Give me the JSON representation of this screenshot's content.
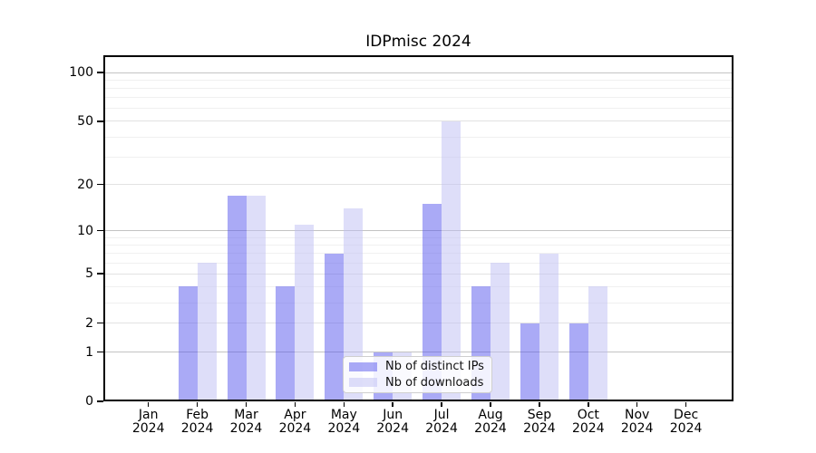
{
  "chart_data": {
    "type": "bar",
    "title": "IDPmisc 2024",
    "xlabel": "",
    "ylabel": "",
    "yscale": "log1p",
    "ylim": [
      0,
      128
    ],
    "yticks": [
      0,
      1,
      2,
      5,
      10,
      20,
      50,
      100
    ],
    "grid": {
      "major": {
        "values": [
          1,
          10,
          100
        ],
        "color": "#c3c3c3"
      },
      "mid": {
        "values": [
          2,
          5,
          20,
          50
        ],
        "color": "#e2e2e2"
      },
      "minor": {
        "values": [
          3,
          4,
          6,
          7,
          8,
          9,
          30,
          40,
          60,
          70,
          80,
          90
        ],
        "color": "#f0f0f0"
      }
    },
    "categories": [
      {
        "month": "Jan",
        "year": "2024"
      },
      {
        "month": "Feb",
        "year": "2024"
      },
      {
        "month": "Mar",
        "year": "2024"
      },
      {
        "month": "Apr",
        "year": "2024"
      },
      {
        "month": "May",
        "year": "2024"
      },
      {
        "month": "Jun",
        "year": "2024"
      },
      {
        "month": "Jul",
        "year": "2024"
      },
      {
        "month": "Aug",
        "year": "2024"
      },
      {
        "month": "Sep",
        "year": "2024"
      },
      {
        "month": "Oct",
        "year": "2024"
      },
      {
        "month": "Nov",
        "year": "2024"
      },
      {
        "month": "Dec",
        "year": "2024"
      }
    ],
    "series": [
      {
        "name": "Nb of distinct IPs",
        "values": [
          0,
          4,
          17,
          4,
          7,
          1,
          15,
          4,
          2,
          2,
          0,
          0
        ],
        "color": "rgba(86,86,238,0.5)",
        "composite_hex": "#aaaaf5"
      },
      {
        "name": "Nb of downloads",
        "values": [
          0,
          6,
          17,
          11,
          14,
          1,
          50,
          6,
          7,
          4,
          0,
          0
        ],
        "color": "rgba(190,190,243,0.5)",
        "composite_hex": "#ddddf8"
      }
    ],
    "legend_position": "bottom-center"
  }
}
